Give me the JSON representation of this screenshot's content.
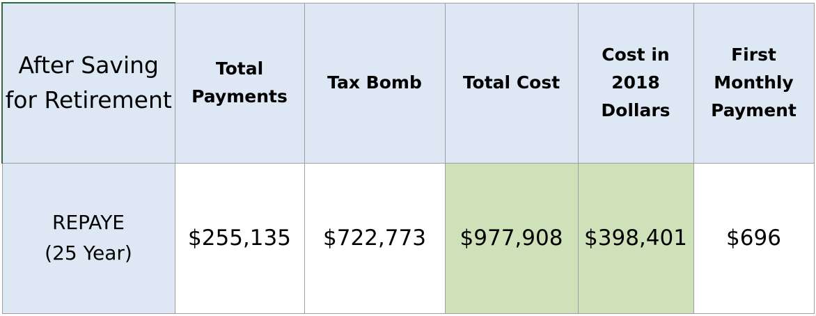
{
  "table": {
    "corner_header": [
      "After Saving",
      "for Retirement"
    ],
    "columns": [
      [
        "Total",
        "Payments"
      ],
      [
        "Tax Bomb"
      ],
      [
        "Total Cost"
      ],
      [
        "Cost in",
        "2018",
        "Dollars"
      ],
      [
        "First",
        "Monthly",
        "Payment"
      ]
    ],
    "rows": [
      {
        "label": [
          "REPAYE",
          "(25 Year)"
        ],
        "cells": [
          "$255,135",
          "$722,773",
          "$977,908",
          "$398,401",
          "$696"
        ]
      }
    ],
    "colors": {
      "header_fill": "#dde8f4",
      "highlight_fill": "#cfe1b9",
      "grid_line": "#9e9e9e"
    }
  }
}
